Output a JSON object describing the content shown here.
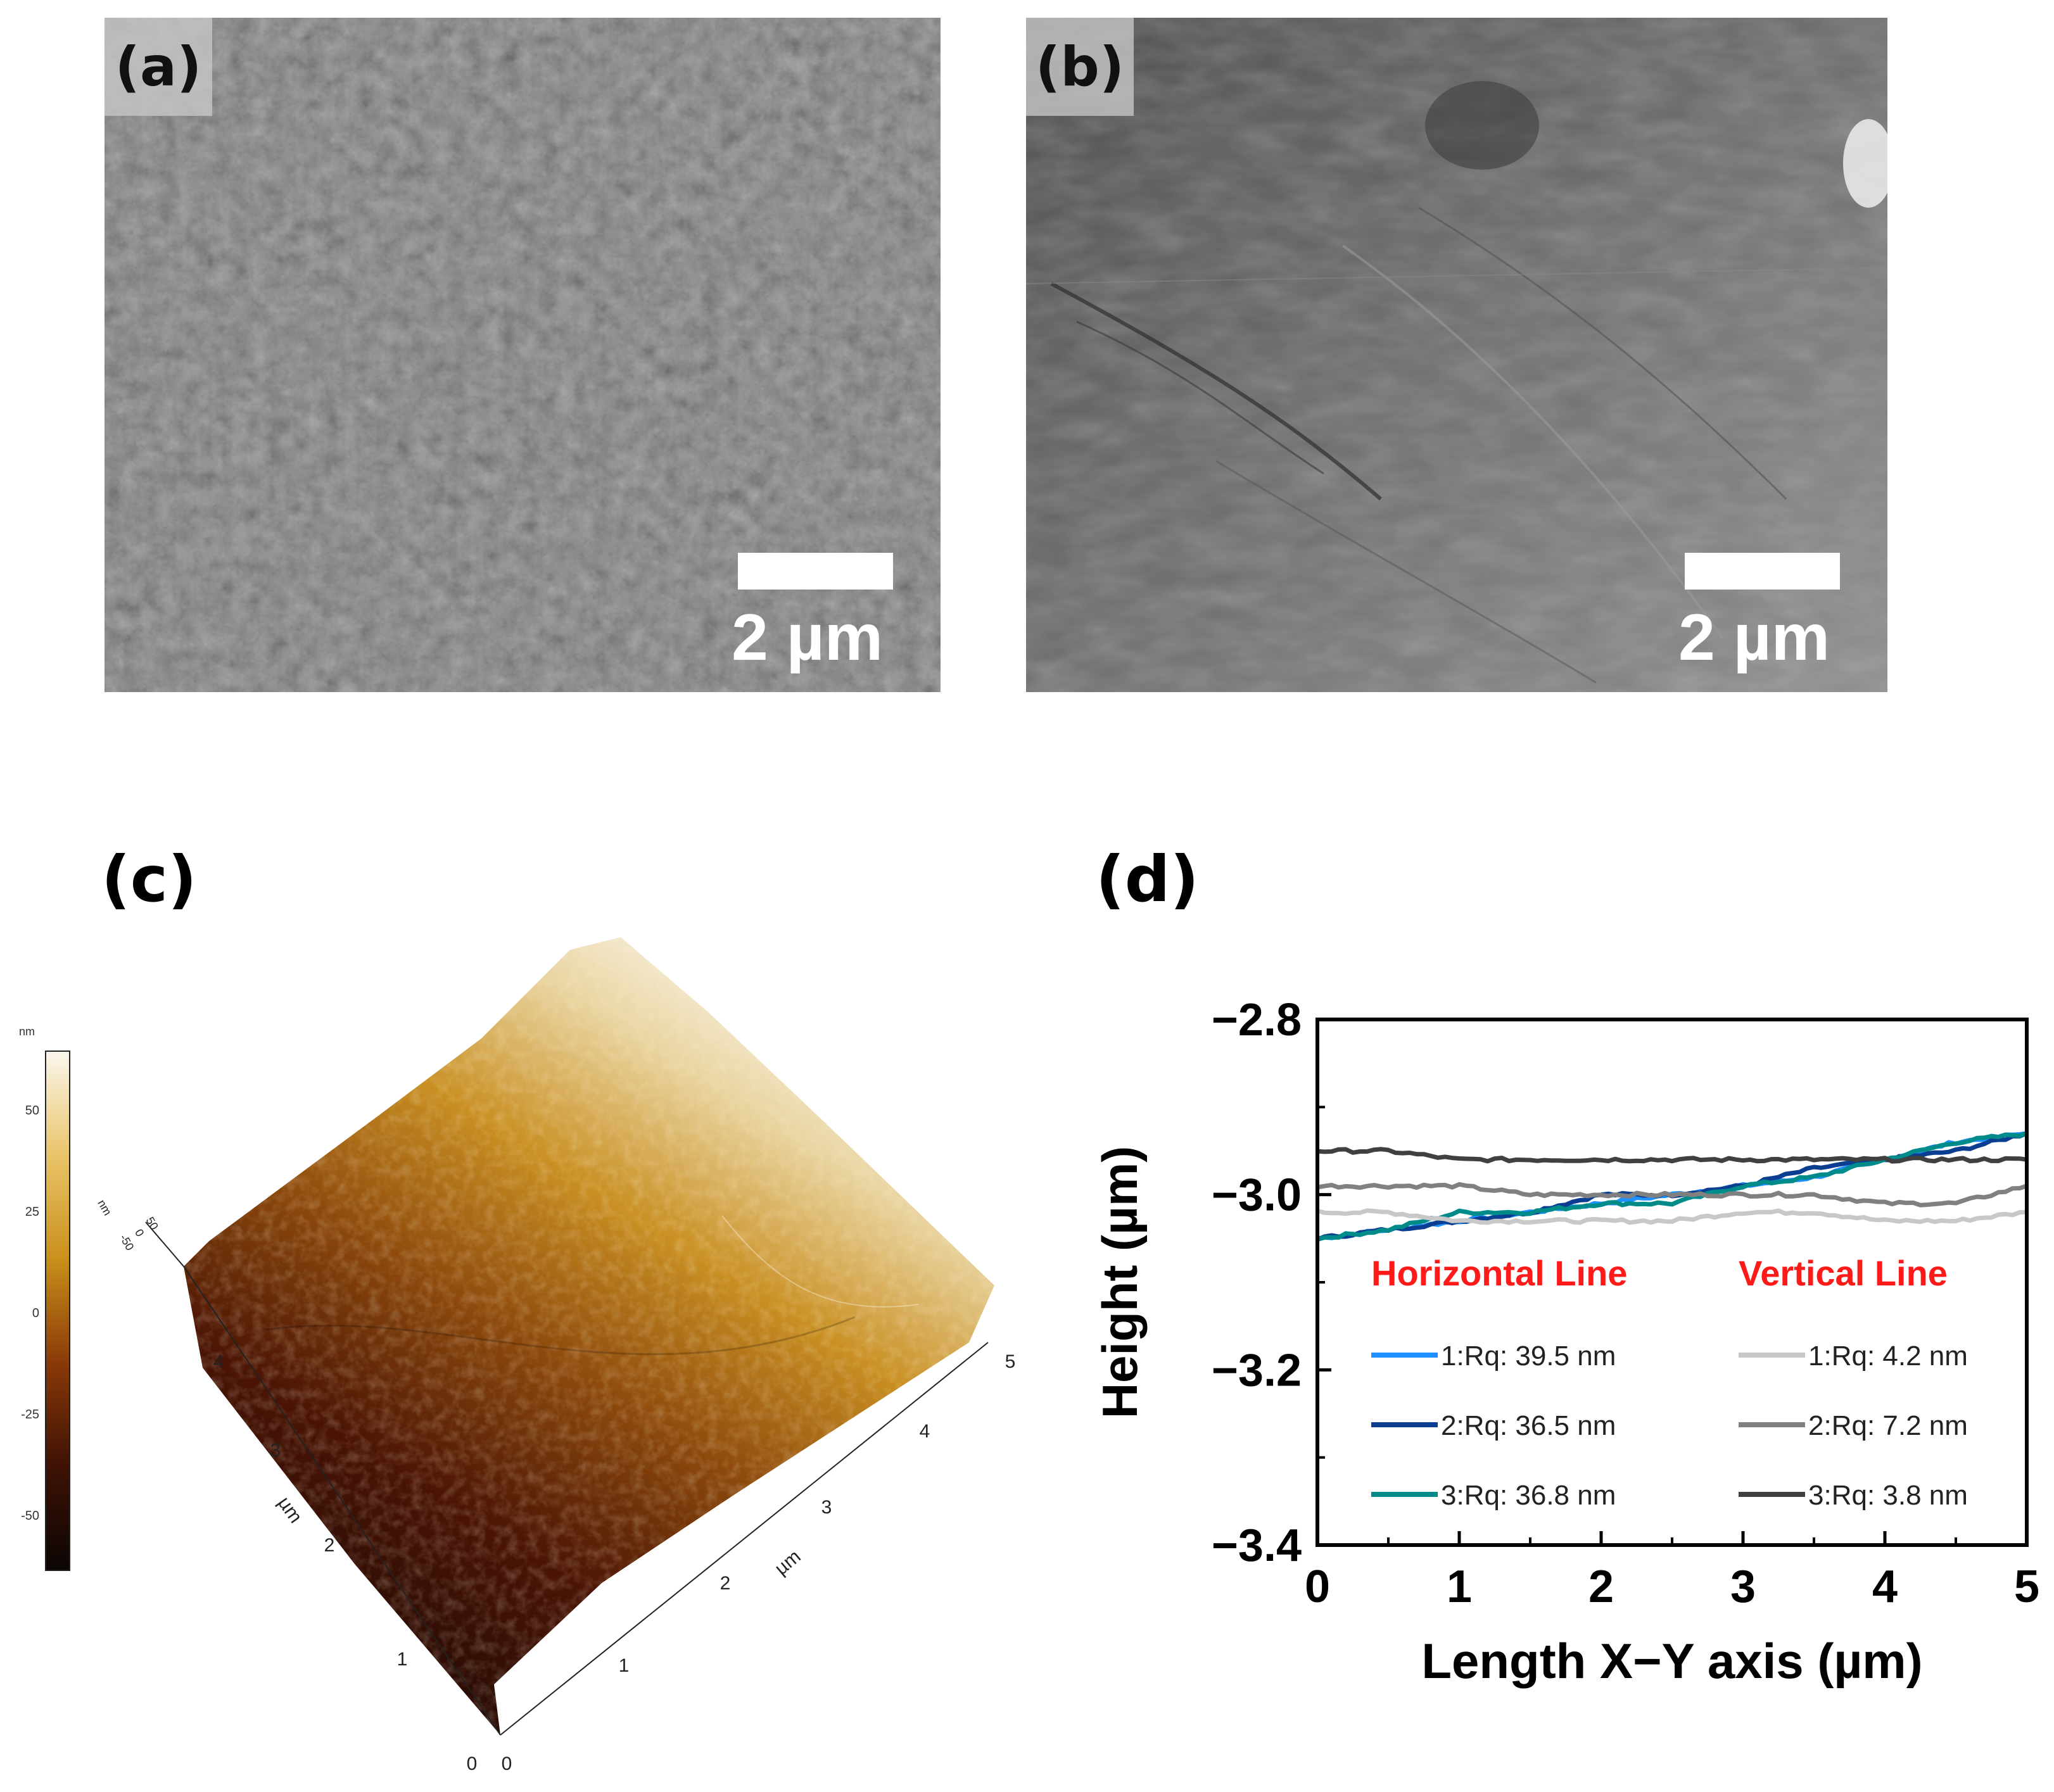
{
  "panels": {
    "a": {
      "label": "(a)",
      "scale_bar": "2 µm"
    },
    "b": {
      "label": "(b)",
      "scale_bar": "2 µm"
    },
    "c": {
      "label": "(c)",
      "colorbar": {
        "unit": "nm",
        "ticks": [
          "50",
          "25",
          "0",
          "-25",
          "-50"
        ]
      },
      "x_ticks": [
        "0",
        "1",
        "2",
        "3",
        "4",
        "5"
      ],
      "y_ticks": [
        "0",
        "1",
        "2",
        "3",
        "4"
      ],
      "x_unit": "µm",
      "y_unit": "µm",
      "z_unit": "nm",
      "z_ticks": [
        "-50",
        "0",
        "50"
      ]
    },
    "d": {
      "label": "(d)"
    }
  },
  "chart_data": {
    "type": "line",
    "xlabel": "Length X−Y axis (µm)",
    "ylabel": "Height (µm)",
    "xlim": [
      0,
      5
    ],
    "ylim": [
      -3.4,
      -2.8
    ],
    "x_ticks": [
      "0",
      "1",
      "2",
      "3",
      "4",
      "5"
    ],
    "y_ticks": [
      "−2.8",
      "−3.0",
      "−3.2",
      "−3.4"
    ],
    "legend_groups": [
      "Horizontal Line",
      "Vertical Line"
    ],
    "x": [
      0,
      0.5,
      1,
      1.5,
      2,
      2.5,
      3,
      3.5,
      4,
      4.5,
      5
    ],
    "series": [
      {
        "name": "1:Rq:  39.5 nm",
        "group": "Horizontal Line",
        "color": "#1e90ff",
        "values": [
          -3.05,
          -3.04,
          -3.03,
          -3.02,
          -3.01,
          -3.0,
          -2.99,
          -2.98,
          -2.96,
          -2.94,
          -2.93
        ]
      },
      {
        "name": "2:Rq:  36.5 nm",
        "group": "Horizontal Line",
        "color": "#0b3d91",
        "values": [
          -3.05,
          -3.04,
          -3.03,
          -3.02,
          -3.0,
          -3.0,
          -2.99,
          -2.97,
          -2.96,
          -2.95,
          -2.93
        ]
      },
      {
        "name": "3:Rq:  36.8 nm",
        "group": "Horizontal Line",
        "color": "#008b8b",
        "values": [
          -3.05,
          -3.04,
          -3.02,
          -3.02,
          -3.01,
          -3.01,
          -2.99,
          -2.98,
          -2.96,
          -2.94,
          -2.93
        ]
      },
      {
        "name": "1:Rq: 4.2 nm",
        "group": "Vertical Line",
        "color": "#c8c8c8",
        "values": [
          -3.02,
          -3.02,
          -3.03,
          -3.03,
          -3.03,
          -3.03,
          -3.02,
          -3.02,
          -3.03,
          -3.03,
          -3.02
        ]
      },
      {
        "name": "2:Rq: 7.2 nm",
        "group": "Vertical Line",
        "color": "#808080",
        "values": [
          -2.99,
          -2.99,
          -2.99,
          -3.0,
          -3.0,
          -3.0,
          -3.0,
          -3.0,
          -3.01,
          -3.01,
          -2.99
        ]
      },
      {
        "name": "3:Rq: 3.8 nm",
        "group": "Vertical Line",
        "color": "#404040",
        "values": [
          -2.95,
          -2.95,
          -2.96,
          -2.96,
          -2.96,
          -2.96,
          -2.96,
          -2.96,
          -2.96,
          -2.96,
          -2.96
        ]
      }
    ]
  }
}
